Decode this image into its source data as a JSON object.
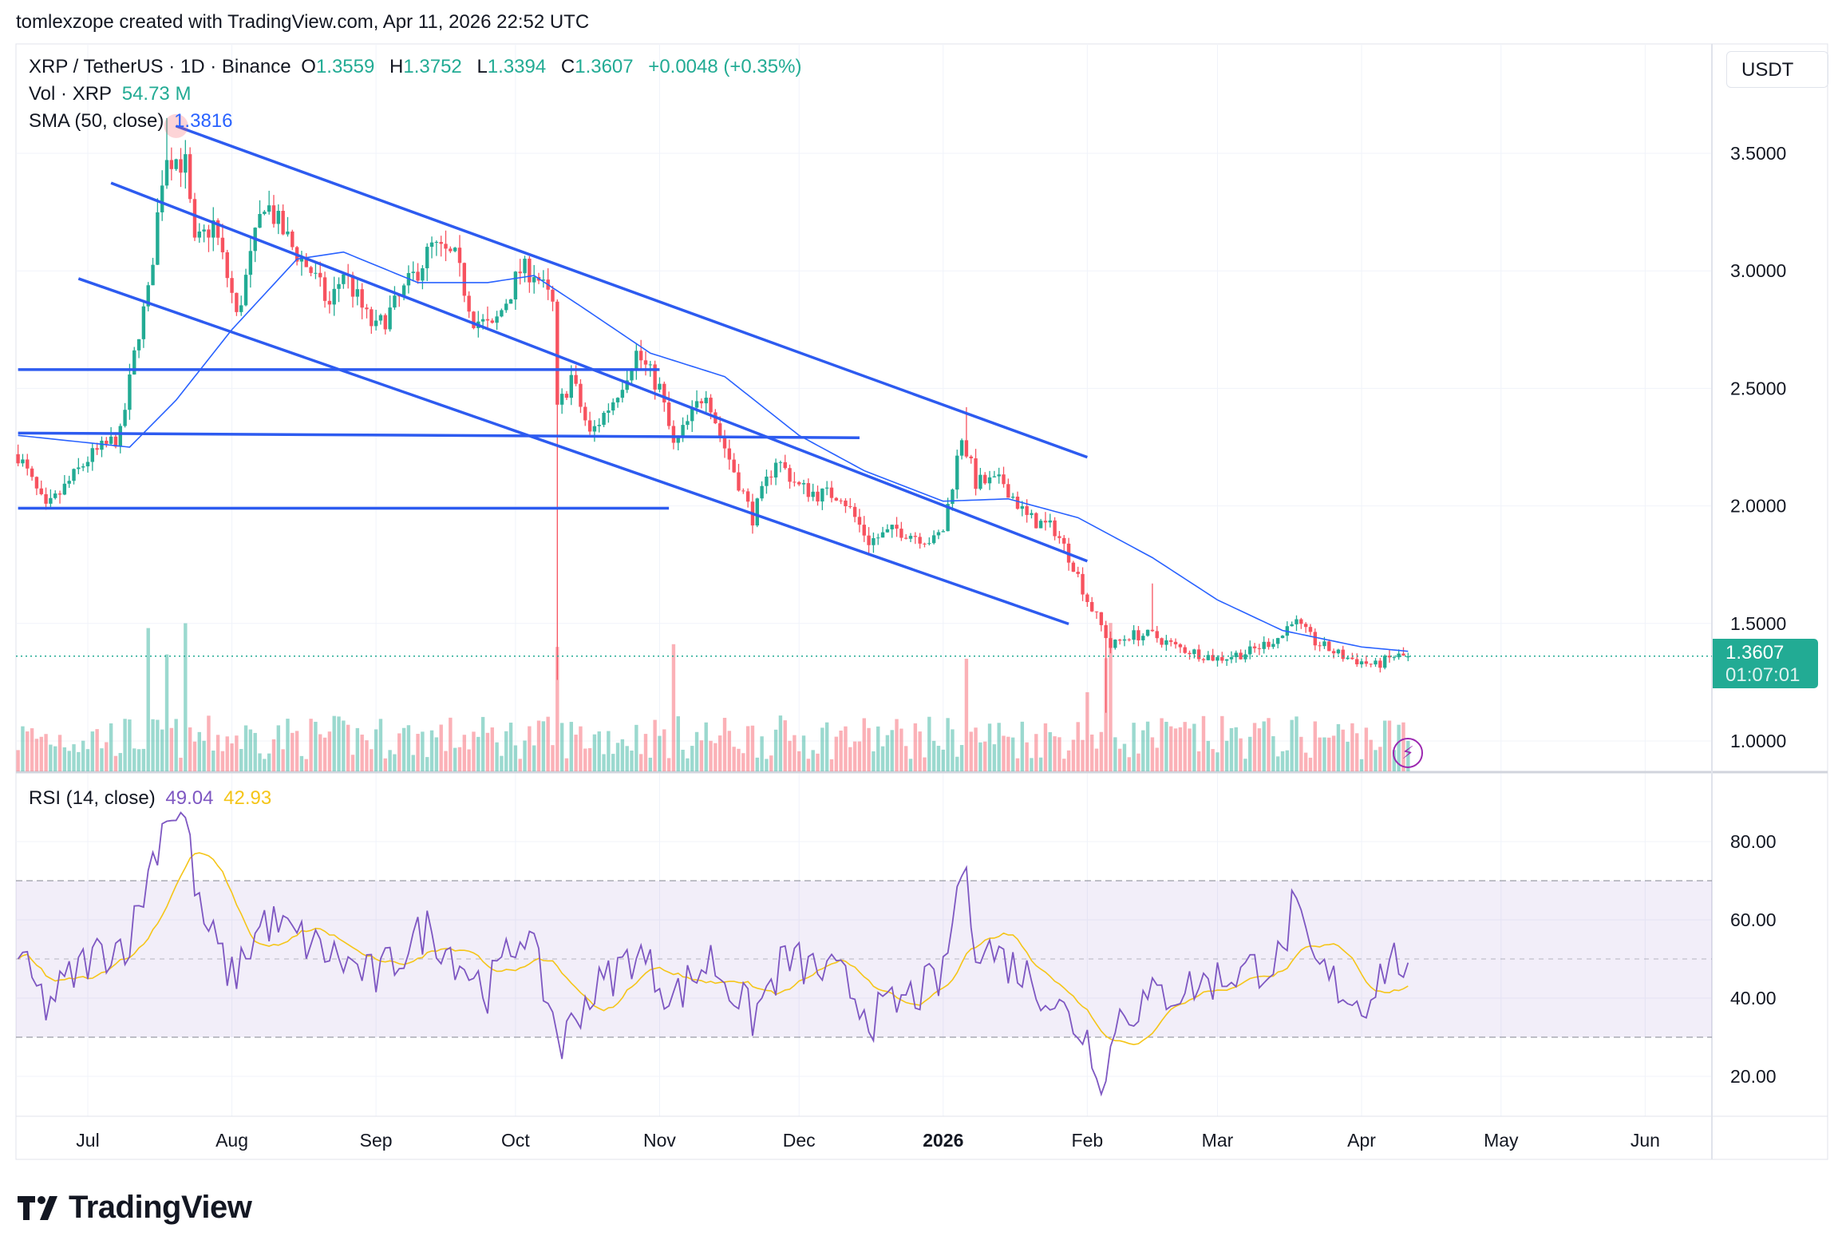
{
  "credit": "tomlexzope created with TradingView.com, Apr 11, 2026 22:52 UTC",
  "legend": {
    "symbol": "XRP / TetherUS · 1D · Binance",
    "o_label": "O",
    "o": "1.3559",
    "h_label": "H",
    "h": "1.3752",
    "l_label": "L",
    "l": "1.3394",
    "c_label": "C",
    "c": "1.3607",
    "change": "+0.0048 (+0.35%)",
    "vol_label": "Vol · XRP",
    "vol": "54.73 M",
    "sma_label": "SMA (50, close)",
    "sma": "1.3816",
    "rsi_label": "RSI (14, close)",
    "rsi": "49.04",
    "rsi_ma": "42.93"
  },
  "currency_button": "USDT",
  "last_price": {
    "price": "1.3607",
    "countdown": "01:07:01"
  },
  "logo_text": "TradingView",
  "colors": {
    "up": "#22ab94",
    "down": "#f7525f",
    "trendline": "#2d5bf0",
    "sma": "#2962ff",
    "rsi": "#7e57c2",
    "rsi_ma": "#f5c518",
    "rsi_band": "#7e57c2"
  },
  "chart_data": [
    {
      "type": "candlestick",
      "title": "XRP / TetherUS · 1D · Binance",
      "y_ticks": [
        "3.5000",
        "3.0000",
        "2.5000",
        "2.0000",
        "1.5000",
        "1.0000"
      ],
      "y_tick_values": [
        3.5,
        3.0,
        2.5,
        2.0,
        1.5,
        1.0
      ],
      "x_ticks": [
        {
          "label": "Jul",
          "date": "2025-07-01"
        },
        {
          "label": "Aug",
          "date": "2025-08-01"
        },
        {
          "label": "Sep",
          "date": "2025-09-01"
        },
        {
          "label": "Oct",
          "date": "2025-10-01"
        },
        {
          "label": "Nov",
          "date": "2025-11-01"
        },
        {
          "label": "Dec",
          "date": "2025-12-01"
        },
        {
          "label": "2026",
          "date": "2026-01-01",
          "bold": true
        },
        {
          "label": "Feb",
          "date": "2026-02-01"
        },
        {
          "label": "Mar",
          "date": "2026-03-01"
        },
        {
          "label": "Apr",
          "date": "2026-04-01"
        },
        {
          "label": "May",
          "date": "2026-05-01"
        },
        {
          "label": "Jun",
          "date": "2026-06-01"
        }
      ],
      "close_points": [
        [
          "2025-06-16",
          2.22
        ],
        [
          "2025-06-22",
          1.98
        ],
        [
          "2025-07-01",
          2.2
        ],
        [
          "2025-07-08",
          2.3
        ],
        [
          "2025-07-12",
          2.75
        ],
        [
          "2025-07-14",
          2.9
        ],
        [
          "2025-07-17",
          3.4
        ],
        [
          "2025-07-18",
          3.5
        ],
        [
          "2025-07-22",
          3.45
        ],
        [
          "2025-07-24",
          3.1
        ],
        [
          "2025-07-28",
          3.2
        ],
        [
          "2025-08-01",
          2.9
        ],
        [
          "2025-08-02",
          2.8
        ],
        [
          "2025-08-08",
          3.3
        ],
        [
          "2025-08-14",
          3.1
        ],
        [
          "2025-08-18",
          3.0
        ],
        [
          "2025-08-22",
          2.85
        ],
        [
          "2025-08-25",
          3.0
        ],
        [
          "2025-08-30",
          2.8
        ],
        [
          "2025-09-01",
          2.75
        ],
        [
          "2025-09-05",
          2.85
        ],
        [
          "2025-09-13",
          3.1
        ],
        [
          "2025-09-18",
          3.05
        ],
        [
          "2025-09-22",
          2.8
        ],
        [
          "2025-09-26",
          2.75
        ],
        [
          "2025-10-02",
          3.0
        ],
        [
          "2025-10-05",
          3.0
        ],
        [
          "2025-10-09",
          2.85
        ],
        [
          "2025-10-10",
          2.4
        ],
        [
          "2025-10-13",
          2.55
        ],
        [
          "2025-10-17",
          2.3
        ],
        [
          "2025-10-22",
          2.45
        ],
        [
          "2025-10-27",
          2.65
        ],
        [
          "2025-11-01",
          2.5
        ],
        [
          "2025-11-04",
          2.25
        ],
        [
          "2025-11-07",
          2.35
        ],
        [
          "2025-11-11",
          2.5
        ],
        [
          "2025-11-14",
          2.3
        ],
        [
          "2025-11-21",
          1.95
        ],
        [
          "2025-11-26",
          2.2
        ],
        [
          "2025-12-01",
          2.08
        ],
        [
          "2025-12-05",
          2.05
        ],
        [
          "2025-12-10",
          2.05
        ],
        [
          "2025-12-16",
          1.85
        ],
        [
          "2025-12-22",
          1.9
        ],
        [
          "2025-12-30",
          1.85
        ],
        [
          "2026-01-01",
          1.9
        ],
        [
          "2026-01-05",
          2.3
        ],
        [
          "2026-01-08",
          2.1
        ],
        [
          "2026-01-14",
          2.1
        ],
        [
          "2026-01-19",
          1.95
        ],
        [
          "2026-01-25",
          1.9
        ],
        [
          "2026-01-29",
          1.75
        ],
        [
          "2026-02-01",
          1.6
        ],
        [
          "2026-02-05",
          1.45
        ],
        [
          "2026-02-06",
          1.4
        ],
        [
          "2026-02-10",
          1.45
        ],
        [
          "2026-02-15",
          1.45
        ],
        [
          "2026-02-20",
          1.4
        ],
        [
          "2026-03-01",
          1.35
        ],
        [
          "2026-03-08",
          1.38
        ],
        [
          "2026-03-15",
          1.45
        ],
        [
          "2026-03-17",
          1.52
        ],
        [
          "2026-03-22",
          1.42
        ],
        [
          "2026-03-28",
          1.36
        ],
        [
          "2026-04-04",
          1.32
        ],
        [
          "2026-04-08",
          1.36
        ],
        [
          "2026-04-11",
          1.3607
        ]
      ],
      "extreme_wicks": [
        [
          "2025-07-18",
          "high",
          3.65
        ],
        [
          "2025-10-10",
          "low",
          1.26
        ],
        [
          "2026-01-06",
          "high",
          2.42
        ],
        [
          "2026-02-05",
          "low",
          1.12
        ],
        [
          "2026-02-15",
          "high",
          1.67
        ]
      ],
      "last_candle": {
        "date": "2026-04-11",
        "open": 1.3559,
        "high": 1.3752,
        "low": 1.3394,
        "close": 1.3607
      },
      "sma50_points": [
        [
          "2025-06-16",
          2.3
        ],
        [
          "2025-07-10",
          2.25
        ],
        [
          "2025-07-20",
          2.45
        ],
        [
          "2025-08-01",
          2.75
        ],
        [
          "2025-08-15",
          3.05
        ],
        [
          "2025-08-25",
          3.08
        ],
        [
          "2025-09-10",
          2.95
        ],
        [
          "2025-09-25",
          2.95
        ],
        [
          "2025-10-05",
          2.98
        ],
        [
          "2025-10-15",
          2.85
        ],
        [
          "2025-10-30",
          2.65
        ],
        [
          "2025-11-15",
          2.55
        ],
        [
          "2025-12-01",
          2.3
        ],
        [
          "2025-12-15",
          2.15
        ],
        [
          "2026-01-01",
          2.02
        ],
        [
          "2026-01-15",
          2.03
        ],
        [
          "2026-01-30",
          1.95
        ],
        [
          "2026-02-15",
          1.78
        ],
        [
          "2026-03-01",
          1.6
        ],
        [
          "2026-03-15",
          1.47
        ],
        [
          "2026-04-01",
          1.4
        ],
        [
          "2026-04-11",
          1.3816
        ]
      ],
      "volume_spikes": [
        "2025-07-14",
        "2025-07-18",
        "2025-07-22",
        "2025-10-10",
        "2025-11-04",
        "2026-01-06",
        "2026-02-01",
        "2026-02-05",
        "2026-02-06"
      ],
      "trendlines": [
        [
          [
            "2025-07-20",
            3.616
          ],
          [
            "2026-02-01",
            2.207
          ]
        ],
        [
          [
            "2025-07-06",
            3.374
          ],
          [
            "2026-02-01",
            1.765
          ]
        ],
        [
          [
            "2025-06-29",
            2.967
          ],
          [
            "2026-01-28",
            1.498
          ]
        ],
        [
          [
            "2025-06-16",
            2.58
          ],
          [
            "2025-11-01",
            2.58
          ]
        ],
        [
          [
            "2025-06-16",
            2.31
          ],
          [
            "2025-12-14",
            2.29
          ]
        ],
        [
          [
            "2025-06-16",
            1.99
          ],
          [
            "2025-11-03",
            1.99
          ]
        ]
      ]
    },
    {
      "type": "line",
      "title": "RSI (14, close)",
      "y_ticks": [
        "80.00",
        "60.00",
        "40.00",
        "20.00"
      ],
      "y_tick_values": [
        80,
        60,
        40,
        20
      ],
      "bands": [
        70,
        50,
        30
      ],
      "rsi_points": [
        [
          "2025-06-16",
          50
        ],
        [
          "2025-06-22",
          38
        ],
        [
          "2025-07-01",
          50
        ],
        [
          "2025-07-10",
          55
        ],
        [
          "2025-07-18",
          88
        ],
        [
          "2025-07-22",
          86
        ],
        [
          "2025-07-25",
          62
        ],
        [
          "2025-08-01",
          45
        ],
        [
          "2025-08-08",
          60
        ],
        [
          "2025-09-01",
          45
        ],
        [
          "2025-09-12",
          58
        ],
        [
          "2025-09-25",
          42
        ],
        [
          "2025-10-03",
          58
        ],
        [
          "2025-10-11",
          28
        ],
        [
          "2025-10-15",
          38
        ],
        [
          "2025-10-27",
          52
        ],
        [
          "2025-11-04",
          40
        ],
        [
          "2025-11-12",
          50
        ],
        [
          "2025-11-21",
          35
        ],
        [
          "2025-11-28",
          50
        ],
        [
          "2025-12-10",
          45
        ],
        [
          "2025-12-17",
          35
        ],
        [
          "2026-01-01",
          45
        ],
        [
          "2026-01-05",
          74
        ],
        [
          "2026-01-08",
          55
        ],
        [
          "2026-01-20",
          45
        ],
        [
          "2026-02-01",
          30
        ],
        [
          "2026-02-05",
          18
        ],
        [
          "2026-02-07",
          35
        ],
        [
          "2026-02-15",
          40
        ],
        [
          "2026-03-01",
          45
        ],
        [
          "2026-03-15",
          50
        ],
        [
          "2026-03-17",
          63
        ],
        [
          "2026-03-22",
          48
        ],
        [
          "2026-04-01",
          38
        ],
        [
          "2026-04-07",
          50
        ],
        [
          "2026-04-11",
          49.04
        ]
      ]
    }
  ]
}
